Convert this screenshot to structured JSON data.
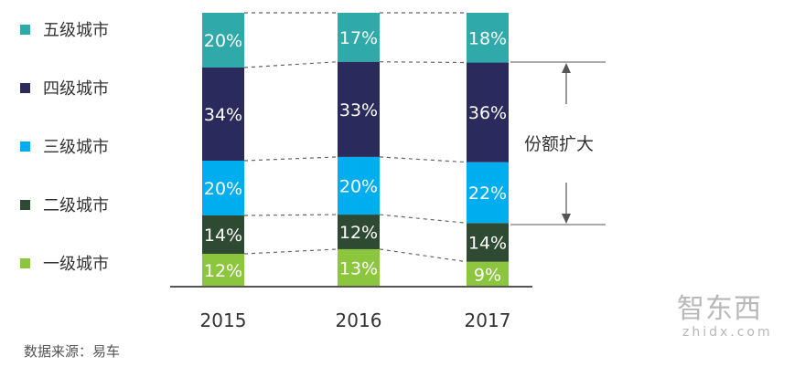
{
  "chart_data": {
    "type": "bar",
    "stacked": true,
    "categories": [
      "2015",
      "2016",
      "2017"
    ],
    "series": [
      {
        "name": "一级城市",
        "values": [
          12,
          13,
          9
        ],
        "labels": [
          "12%",
          "13%",
          "9%"
        ],
        "color": "#8cc63f"
      },
      {
        "name": "二级城市",
        "values": [
          14,
          12,
          14
        ],
        "labels": [
          "14%",
          "12%",
          "14%"
        ],
        "color": "#2e4a33"
      },
      {
        "name": "三级城市",
        "values": [
          20,
          20,
          22
        ],
        "labels": [
          "20%",
          "20%",
          "22%"
        ],
        "color": "#00aeef"
      },
      {
        "name": "四级城市",
        "values": [
          34,
          33,
          36
        ],
        "labels": [
          "34%",
          "33%",
          "36%"
        ],
        "color": "#2a2b5c"
      },
      {
        "name": "五级城市",
        "values": [
          20,
          17,
          18
        ],
        "labels": [
          "20%",
          "17%",
          "18%"
        ],
        "color": "#2fa9a9"
      }
    ],
    "legend_position": "left",
    "connector_lines": "dashed",
    "annotation": "份额扩大",
    "ylim": [
      0,
      100
    ],
    "grid": false
  },
  "source_note": "数据来源：易车",
  "watermark": {
    "cn": "智东西",
    "en": "zhidx.com"
  }
}
